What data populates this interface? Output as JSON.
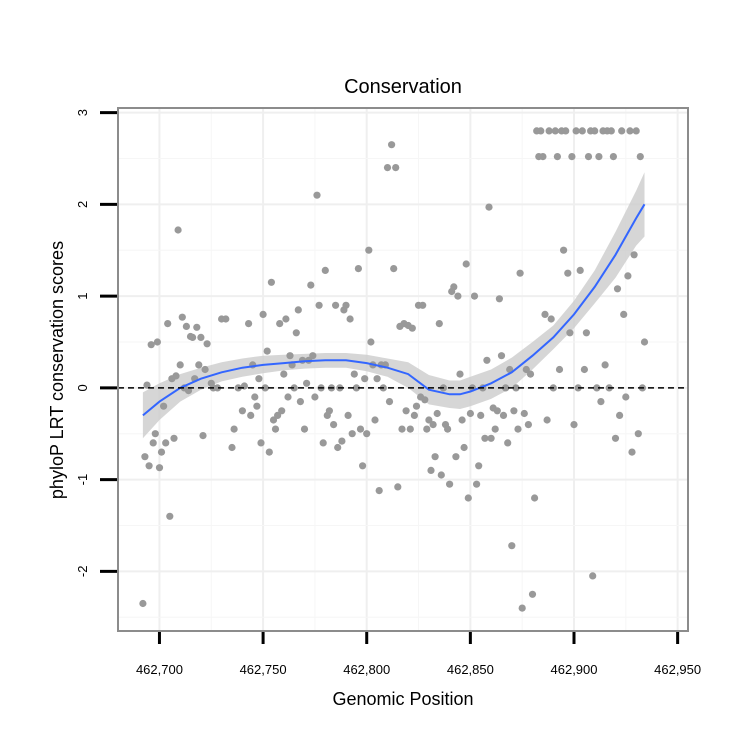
{
  "chart_data": {
    "type": "scatter",
    "title": "Conservation",
    "xlabel": "Genomic Position",
    "ylabel": "phyloP LRT conservation scores",
    "xlim": [
      462680,
      462955
    ],
    "ylim": [
      -2.65,
      3.05
    ],
    "x_ticks": [
      462700,
      462750,
      462800,
      462850,
      462900,
      462950
    ],
    "x_tick_labels": [
      "462,700",
      "462,750",
      "462,800",
      "462,850",
      "462,900",
      "462,950"
    ],
    "y_ticks": [
      -2,
      -1,
      0,
      1,
      2,
      3
    ],
    "y_tick_labels": [
      "-2",
      "-1",
      "0",
      "1",
      "2",
      "3"
    ],
    "grid": true,
    "reference_line": {
      "y": 0,
      "style": "dashed",
      "color": "#000000"
    },
    "colors": {
      "points": "#999999",
      "smooth": "#3366ff",
      "ribbon": "#cccccc",
      "border": "#8c8c8c"
    },
    "points": [
      [
        462692,
        -2.35
      ],
      [
        462693,
        -0.75
      ],
      [
        462694,
        0.03
      ],
      [
        462695,
        -0.85
      ],
      [
        462696,
        0.47
      ],
      [
        462697,
        -0.6
      ],
      [
        462698,
        -0.5
      ],
      [
        462699,
        0.5
      ],
      [
        462700,
        -0.87
      ],
      [
        462701,
        -0.7
      ],
      [
        462702,
        -0.2
      ],
      [
        462703,
        -0.6
      ],
      [
        462704,
        0.7
      ],
      [
        462705,
        -1.4
      ],
      [
        462706,
        0.1
      ],
      [
        462707,
        -0.55
      ],
      [
        462708,
        0.13
      ],
      [
        462709,
        1.72
      ],
      [
        462710,
        0.25
      ],
      [
        462711,
        0.77
      ],
      [
        462712,
        0.0
      ],
      [
        462713,
        0.67
      ],
      [
        462714,
        -0.03
      ],
      [
        462715,
        0.56
      ],
      [
        462716,
        0.55
      ],
      [
        462717,
        0.1
      ],
      [
        462718,
        0.66
      ],
      [
        462719,
        0.25
      ],
      [
        462720,
        0.55
      ],
      [
        462721,
        -0.52
      ],
      [
        462722,
        0.2
      ],
      [
        462723,
        0.48
      ],
      [
        462725,
        0.05
      ],
      [
        462726,
        0.0
      ],
      [
        462728,
        0.0
      ],
      [
        462730,
        0.75
      ],
      [
        462732,
        0.75
      ],
      [
        462735,
        -0.65
      ],
      [
        462736,
        -0.45
      ],
      [
        462738,
        0.0
      ],
      [
        462740,
        -0.25
      ],
      [
        462741,
        0.02
      ],
      [
        462743,
        0.7
      ],
      [
        462744,
        -0.3
      ],
      [
        462745,
        0.25
      ],
      [
        462746,
        -0.1
      ],
      [
        462747,
        -0.2
      ],
      [
        462748,
        0.1
      ],
      [
        462749,
        -0.6
      ],
      [
        462750,
        0.8
      ],
      [
        462751,
        0.0
      ],
      [
        462752,
        0.4
      ],
      [
        462753,
        -0.7
      ],
      [
        462754,
        1.15
      ],
      [
        462755,
        -0.35
      ],
      [
        462756,
        -0.45
      ],
      [
        462757,
        -0.3
      ],
      [
        462758,
        0.7
      ],
      [
        462759,
        -0.25
      ],
      [
        462760,
        0.15
      ],
      [
        462761,
        0.75
      ],
      [
        462762,
        -0.1
      ],
      [
        462763,
        0.35
      ],
      [
        462764,
        0.25
      ],
      [
        462765,
        0.0
      ],
      [
        462766,
        0.6
      ],
      [
        462767,
        0.85
      ],
      [
        462768,
        -0.15
      ],
      [
        462769,
        0.3
      ],
      [
        462770,
        -0.45
      ],
      [
        462771,
        0.05
      ],
      [
        462772,
        0.3
      ],
      [
        462773,
        1.12
      ],
      [
        462774,
        0.35
      ],
      [
        462775,
        -0.1
      ],
      [
        462776,
        2.1
      ],
      [
        462777,
        0.9
      ],
      [
        462778,
        0.0
      ],
      [
        462779,
        -0.6
      ],
      [
        462780,
        1.28
      ],
      [
        462781,
        -0.3
      ],
      [
        462782,
        -0.25
      ],
      [
        462783,
        0.0
      ],
      [
        462784,
        -0.4
      ],
      [
        462785,
        0.9
      ],
      [
        462786,
        -0.65
      ],
      [
        462787,
        0.0
      ],
      [
        462788,
        -0.58
      ],
      [
        462789,
        0.85
      ],
      [
        462790,
        0.9
      ],
      [
        462791,
        -0.3
      ],
      [
        462792,
        0.75
      ],
      [
        462793,
        -0.5
      ],
      [
        462794,
        0.15
      ],
      [
        462795,
        0.0
      ],
      [
        462796,
        1.3
      ],
      [
        462797,
        -0.45
      ],
      [
        462798,
        -0.85
      ],
      [
        462799,
        0.1
      ],
      [
        462800,
        -0.5
      ],
      [
        462801,
        1.5
      ],
      [
        462802,
        0.5
      ],
      [
        462803,
        0.25
      ],
      [
        462804,
        -0.35
      ],
      [
        462805,
        0.1
      ],
      [
        462806,
        -1.12
      ],
      [
        462807,
        0.25
      ],
      [
        462808,
        0.0
      ],
      [
        462809,
        0.25
      ],
      [
        462810,
        2.4
      ],
      [
        462811,
        -0.15
      ],
      [
        462812,
        2.65
      ],
      [
        462813,
        1.3
      ],
      [
        462814,
        2.4
      ],
      [
        462815,
        -1.08
      ],
      [
        462816,
        0.67
      ],
      [
        462817,
        -0.45
      ],
      [
        462818,
        0.7
      ],
      [
        462819,
        -0.25
      ],
      [
        462820,
        0.68
      ],
      [
        462821,
        -0.45
      ],
      [
        462822,
        0.65
      ],
      [
        462823,
        -0.3
      ],
      [
        462824,
        -0.2
      ],
      [
        462825,
        0.9
      ],
      [
        462826,
        -0.1
      ],
      [
        462827,
        0.9
      ],
      [
        462828,
        -0.13
      ],
      [
        462829,
        -0.45
      ],
      [
        462830,
        -0.35
      ],
      [
        462831,
        -0.9
      ],
      [
        462832,
        -0.4
      ],
      [
        462833,
        -0.75
      ],
      [
        462834,
        -0.28
      ],
      [
        462835,
        0.7
      ],
      [
        462836,
        -0.95
      ],
      [
        462837,
        0.0
      ],
      [
        462838,
        -0.4
      ],
      [
        462839,
        -0.45
      ],
      [
        462840,
        -1.05
      ],
      [
        462841,
        1.05
      ],
      [
        462842,
        1.1
      ],
      [
        462843,
        -0.75
      ],
      [
        462844,
        1.0
      ],
      [
        462845,
        0.15
      ],
      [
        462846,
        -0.35
      ],
      [
        462847,
        -0.65
      ],
      [
        462848,
        1.35
      ],
      [
        462849,
        -1.2
      ],
      [
        462850,
        -0.28
      ],
      [
        462851,
        0.0
      ],
      [
        462852,
        1.0
      ],
      [
        462853,
        -1.05
      ],
      [
        462854,
        -0.85
      ],
      [
        462855,
        -0.3
      ],
      [
        462856,
        0.0
      ],
      [
        462857,
        -0.55
      ],
      [
        462858,
        0.3
      ],
      [
        462859,
        1.97
      ],
      [
        462860,
        -0.55
      ],
      [
        462861,
        -0.22
      ],
      [
        462862,
        -0.45
      ],
      [
        462863,
        -0.25
      ],
      [
        462864,
        0.97
      ],
      [
        462865,
        0.35
      ],
      [
        462866,
        -0.3
      ],
      [
        462867,
        0.0
      ],
      [
        462868,
        -0.6
      ],
      [
        462869,
        0.2
      ],
      [
        462870,
        -1.72
      ],
      [
        462871,
        -0.25
      ],
      [
        462872,
        0.0
      ],
      [
        462873,
        -0.45
      ],
      [
        462874,
        1.25
      ],
      [
        462875,
        -2.4
      ],
      [
        462876,
        -0.28
      ],
      [
        462877,
        0.2
      ],
      [
        462878,
        -0.4
      ],
      [
        462879,
        0.15
      ],
      [
        462880,
        -2.25
      ],
      [
        462881,
        -1.2
      ],
      [
        462882,
        2.8
      ],
      [
        462883,
        2.52
      ],
      [
        462884,
        2.8
      ],
      [
        462885,
        2.52
      ],
      [
        462886,
        0.8
      ],
      [
        462887,
        -0.35
      ],
      [
        462888,
        2.8
      ],
      [
        462889,
        0.75
      ],
      [
        462890,
        0.0
      ],
      [
        462891,
        2.8
      ],
      [
        462892,
        2.52
      ],
      [
        462893,
        0.2
      ],
      [
        462894,
        2.8
      ],
      [
        462895,
        1.5
      ],
      [
        462896,
        2.8
      ],
      [
        462897,
        1.25
      ],
      [
        462898,
        0.6
      ],
      [
        462899,
        2.52
      ],
      [
        462900,
        -0.4
      ],
      [
        462901,
        2.8
      ],
      [
        462902,
        0.0
      ],
      [
        462903,
        1.28
      ],
      [
        462904,
        2.8
      ],
      [
        462905,
        0.2
      ],
      [
        462906,
        0.6
      ],
      [
        462907,
        2.52
      ],
      [
        462908,
        2.8
      ],
      [
        462909,
        -2.05
      ],
      [
        462910,
        2.8
      ],
      [
        462911,
        0.0
      ],
      [
        462912,
        2.52
      ],
      [
        462913,
        -0.15
      ],
      [
        462914,
        2.8
      ],
      [
        462915,
        0.25
      ],
      [
        462916,
        2.8
      ],
      [
        462917,
        0.0
      ],
      [
        462918,
        2.8
      ],
      [
        462919,
        2.52
      ],
      [
        462920,
        -0.55
      ],
      [
        462921,
        1.08
      ],
      [
        462922,
        -0.3
      ],
      [
        462923,
        2.8
      ],
      [
        462924,
        0.8
      ],
      [
        462925,
        -0.1
      ],
      [
        462926,
        1.22
      ],
      [
        462927,
        2.8
      ],
      [
        462928,
        -0.7
      ],
      [
        462929,
        1.45
      ],
      [
        462930,
        2.8
      ],
      [
        462931,
        -0.5
      ],
      [
        462932,
        2.52
      ],
      [
        462933,
        0.0
      ],
      [
        462934,
        0.5
      ]
    ],
    "smooth": {
      "x": [
        462692,
        462700,
        462710,
        462720,
        462730,
        462740,
        462750,
        462760,
        462770,
        462780,
        462790,
        462800,
        462810,
        462820,
        462830,
        462840,
        462845,
        462850,
        462860,
        462870,
        462880,
        462890,
        462900,
        462910,
        462920,
        462930,
        462934
      ],
      "y": [
        -0.3,
        -0.15,
        0.0,
        0.1,
        0.17,
        0.22,
        0.25,
        0.27,
        0.29,
        0.3,
        0.3,
        0.27,
        0.22,
        0.15,
        -0.02,
        -0.07,
        -0.07,
        -0.04,
        0.05,
        0.17,
        0.35,
        0.55,
        0.8,
        1.1,
        1.45,
        1.85,
        2.0
      ],
      "lower": [
        -0.55,
        -0.35,
        -0.15,
        -0.02,
        0.07,
        0.12,
        0.16,
        0.19,
        0.21,
        0.22,
        0.22,
        0.18,
        0.12,
        0.0,
        -0.18,
        -0.22,
        -0.23,
        -0.2,
        -0.12,
        0.0,
        0.2,
        0.42,
        0.65,
        0.92,
        1.2,
        1.55,
        1.65
      ],
      "upper": [
        -0.05,
        0.05,
        0.15,
        0.22,
        0.28,
        0.32,
        0.35,
        0.36,
        0.37,
        0.38,
        0.38,
        0.36,
        0.32,
        0.28,
        0.14,
        0.08,
        0.08,
        0.12,
        0.2,
        0.33,
        0.5,
        0.68,
        0.95,
        1.28,
        1.7,
        2.15,
        2.35
      ]
    }
  }
}
